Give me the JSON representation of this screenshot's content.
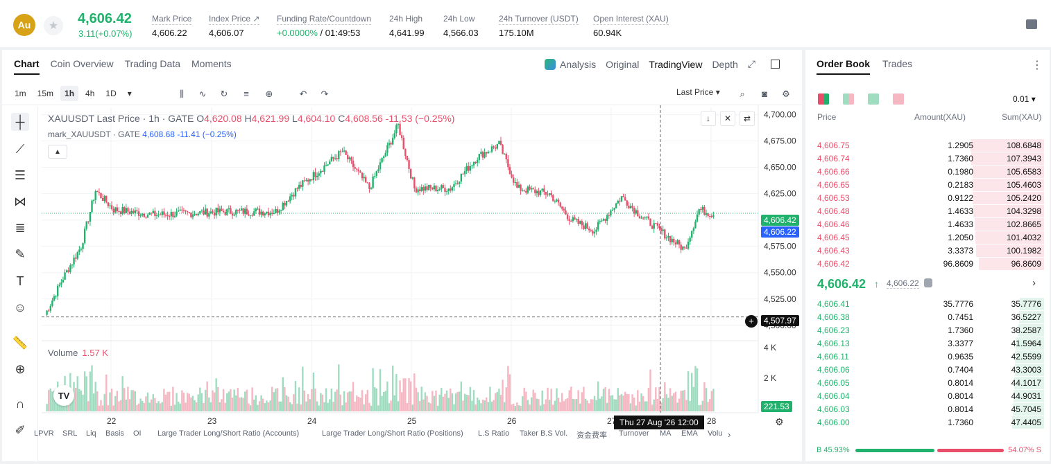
{
  "header": {
    "coin_symbol": "Au",
    "last_price": "4,606.42",
    "change": "3.11(+0.07%)",
    "stats": [
      {
        "label": "Mark Price",
        "value": "4,606.22"
      },
      {
        "label": "Index Price ↗",
        "value": "4,606.07"
      },
      {
        "label": "Funding Rate/Countdown",
        "value_green": "+0.0000%",
        "value": " / 01:49:53"
      },
      {
        "label": "24h High",
        "value": "4,641.99"
      },
      {
        "label": "24h Low",
        "value": "4,566.03"
      },
      {
        "label": "24h Turnover (USDT)",
        "value": "175.10M"
      },
      {
        "label": "Open Interest (XAU)",
        "value": "60.94K"
      }
    ]
  },
  "chart_tabs": [
    "Chart",
    "Coin Overview",
    "Trading Data",
    "Moments"
  ],
  "view_modes": [
    "Analysis",
    "Original",
    "TradingView",
    "Depth"
  ],
  "intervals": [
    "1m",
    "15m",
    "1h",
    "4h",
    "1D"
  ],
  "active_interval": "1h",
  "price_type": "Last Price",
  "legend": {
    "symbol": "XAUUSDT Last Price · 1h · GATE",
    "o_label": "O",
    "o": "4,620.08",
    "h_label": "H",
    "h": "4,621.99",
    "l_label": "L",
    "l": "4,604.10",
    "c_label": "C",
    "c": "4,608.56",
    "chg": "-11.53 (−0.25%)",
    "mark_line": "mark_XAUUSDT · GATE",
    "mark_val": "4,608.68",
    "mark_chg": "-11.41 (−0.25%)"
  },
  "volume_legend": {
    "label": "Volume",
    "value": "1.57 K"
  },
  "price_axis": [
    "4,700.00",
    "4,675.00",
    "4,650.00",
    "4,625.00",
    "4,600.00",
    "4,575.00",
    "4,550.00",
    "4,525.00",
    "4,500.00"
  ],
  "volume_axis": [
    "4 K",
    "2 K"
  ],
  "time_axis": [
    "22",
    "23",
    "24",
    "25",
    "26",
    "27",
    "28"
  ],
  "tags": {
    "last": "4,606.42",
    "mark": "4,606.22",
    "cursor": "4,507.97",
    "volume": "221.53",
    "time": "Thu 27 Aug '26   12:00"
  },
  "indicators": [
    "LPVR",
    "SRL",
    "Liq",
    "Basis",
    "OI",
    "Large Trader Long/Short Ratio (Accounts)",
    "Large Trader Long/Short Ratio (Positions)",
    "L.S Ratio",
    "Taker B.S Vol.",
    "资金费率",
    "Turnover",
    "MA",
    "EMA",
    "Volu"
  ],
  "colors": {
    "up": "#20b26c",
    "down": "#e84e6a",
    "mark_blue": "#2962ff"
  },
  "order_book": {
    "tabs": [
      "Order Book",
      "Trades"
    ],
    "precision": "0.01",
    "headers": {
      "price": "Price",
      "amount": "Amount(XAU)",
      "sum": "Sum(XAU)"
    },
    "asks": [
      {
        "price": "4,606.75",
        "amount": "1.2905",
        "sum": "108.6848"
      },
      {
        "price": "4,606.74",
        "amount": "1.7360",
        "sum": "107.3943"
      },
      {
        "price": "4,606.66",
        "amount": "0.1980",
        "sum": "105.6583"
      },
      {
        "price": "4,606.65",
        "amount": "0.2183",
        "sum": "105.4603"
      },
      {
        "price": "4,606.53",
        "amount": "0.9122",
        "sum": "105.2420"
      },
      {
        "price": "4,606.48",
        "amount": "1.4633",
        "sum": "104.3298"
      },
      {
        "price": "4,606.46",
        "amount": "1.4633",
        "sum": "102.8665"
      },
      {
        "price": "4,606.45",
        "amount": "1.2050",
        "sum": "101.4032"
      },
      {
        "price": "4,606.43",
        "amount": "3.3373",
        "sum": "100.1982"
      },
      {
        "price": "4,606.42",
        "amount": "96.8609",
        "sum": "96.8609"
      }
    ],
    "mid_price": "4,606.42",
    "mid_arrow": "↑",
    "mark_price": "4,606.22",
    "bids": [
      {
        "price": "4,606.41",
        "amount": "35.7776",
        "sum": "35.7776"
      },
      {
        "price": "4,606.38",
        "amount": "0.7451",
        "sum": "36.5227"
      },
      {
        "price": "4,606.23",
        "amount": "1.7360",
        "sum": "38.2587"
      },
      {
        "price": "4,606.13",
        "amount": "3.3377",
        "sum": "41.5964"
      },
      {
        "price": "4,606.11",
        "amount": "0.9635",
        "sum": "42.5599"
      },
      {
        "price": "4,606.06",
        "amount": "0.7404",
        "sum": "43.3003"
      },
      {
        "price": "4,606.05",
        "amount": "0.8014",
        "sum": "44.1017"
      },
      {
        "price": "4,606.04",
        "amount": "0.8014",
        "sum": "44.9031"
      },
      {
        "price": "4,606.03",
        "amount": "0.8014",
        "sum": "45.7045"
      },
      {
        "price": "4,606.00",
        "amount": "1.7360",
        "sum": "47.4405"
      }
    ],
    "buy_ratio": "B 45.93%",
    "sell_ratio": "54.07% S"
  }
}
